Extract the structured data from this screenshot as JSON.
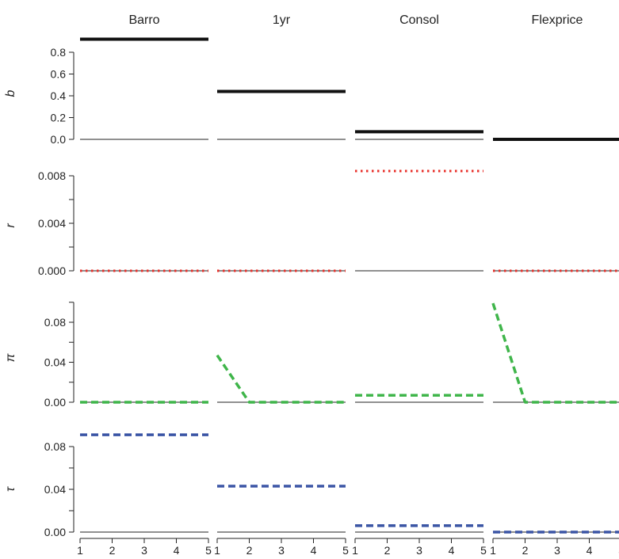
{
  "chart_data": {
    "type": "line",
    "columns": [
      "Barro",
      "1yr",
      "Consol",
      "Flexprice"
    ],
    "x": [
      1,
      2,
      3,
      4,
      5
    ],
    "x_ticks": [
      "1",
      "2",
      "3",
      "4",
      "5"
    ],
    "rows": [
      {
        "label": "b",
        "ylim": [
          0,
          0.9
        ],
        "y_ticks": [
          {
            "value": 0.0,
            "label": "0.0"
          },
          {
            "value": 0.2,
            "label": "0.2"
          },
          {
            "value": 0.4,
            "label": "0.4"
          },
          {
            "value": 0.6,
            "label": "0.6"
          },
          {
            "value": 0.8,
            "label": "0.8"
          }
        ],
        "minor_ticks": [],
        "color": "#111111",
        "dash": "solid",
        "panels": [
          {
            "values": [
              0.92,
              0.92,
              0.92,
              0.92,
              0.92
            ]
          },
          {
            "values": [
              0.44,
              0.44,
              0.44,
              0.44,
              0.44
            ]
          },
          {
            "values": [
              0.07,
              0.07,
              0.07,
              0.07,
              0.07
            ]
          },
          {
            "values": [
              0.0,
              0.0,
              0.0,
              0.0,
              0.0
            ]
          }
        ]
      },
      {
        "label": "r",
        "ylim": [
          0,
          0.009
        ],
        "y_ticks": [
          {
            "value": 0.0,
            "label": "0.000"
          },
          {
            "value": 0.004,
            "label": "0.004"
          },
          {
            "value": 0.008,
            "label": "0.008"
          }
        ],
        "minor_ticks": [
          0.002,
          0.006
        ],
        "color": "#e8302a",
        "dash": "dotted",
        "panels": [
          {
            "values": [
              0.0,
              0.0,
              0.0,
              0.0,
              0.0
            ]
          },
          {
            "values": [
              0.0,
              0.0,
              0.0,
              0.0,
              0.0
            ]
          },
          {
            "values": [
              0.0084,
              0.0084,
              0.0084,
              0.0084,
              0.0084
            ]
          },
          {
            "values": [
              0.0,
              0.0,
              0.0,
              0.0,
              0.0
            ]
          }
        ]
      },
      {
        "label": "π",
        "ylim": [
          0,
          0.1
        ],
        "y_ticks": [
          {
            "value": 0.0,
            "label": "0.00"
          },
          {
            "value": 0.04,
            "label": "0.04"
          },
          {
            "value": 0.08,
            "label": "0.08"
          }
        ],
        "minor_ticks": [
          0.02,
          0.06,
          0.1
        ],
        "color": "#3fb54a",
        "dash": "dashed",
        "panels": [
          {
            "values": [
              0.0,
              0.0,
              0.0,
              0.0,
              0.0
            ]
          },
          {
            "values": [
              0.047,
              0.0,
              0.0,
              0.0,
              0.0
            ]
          },
          {
            "values": [
              0.007,
              0.007,
              0.007,
              0.007,
              0.007
            ]
          },
          {
            "values": [
              0.099,
              0.0,
              0.0,
              0.0,
              0.0
            ]
          }
        ]
      },
      {
        "label": "τ",
        "ylim": [
          0,
          0.1
        ],
        "y_ticks": [
          {
            "value": 0.0,
            "label": "0.00"
          },
          {
            "value": 0.04,
            "label": "0.04"
          },
          {
            "value": 0.08,
            "label": "0.08"
          }
        ],
        "minor_ticks": [
          0.02,
          0.06
        ],
        "color": "#3b55a5",
        "dash": "dashed",
        "panels": [
          {
            "values": [
              0.091,
              0.091,
              0.091,
              0.091,
              0.091
            ]
          },
          {
            "values": [
              0.043,
              0.043,
              0.043,
              0.043,
              0.043
            ]
          },
          {
            "values": [
              0.006,
              0.006,
              0.006,
              0.006,
              0.006
            ]
          },
          {
            "values": [
              0.0,
              0.0,
              0.0,
              0.0,
              0.0
            ]
          }
        ]
      }
    ]
  }
}
